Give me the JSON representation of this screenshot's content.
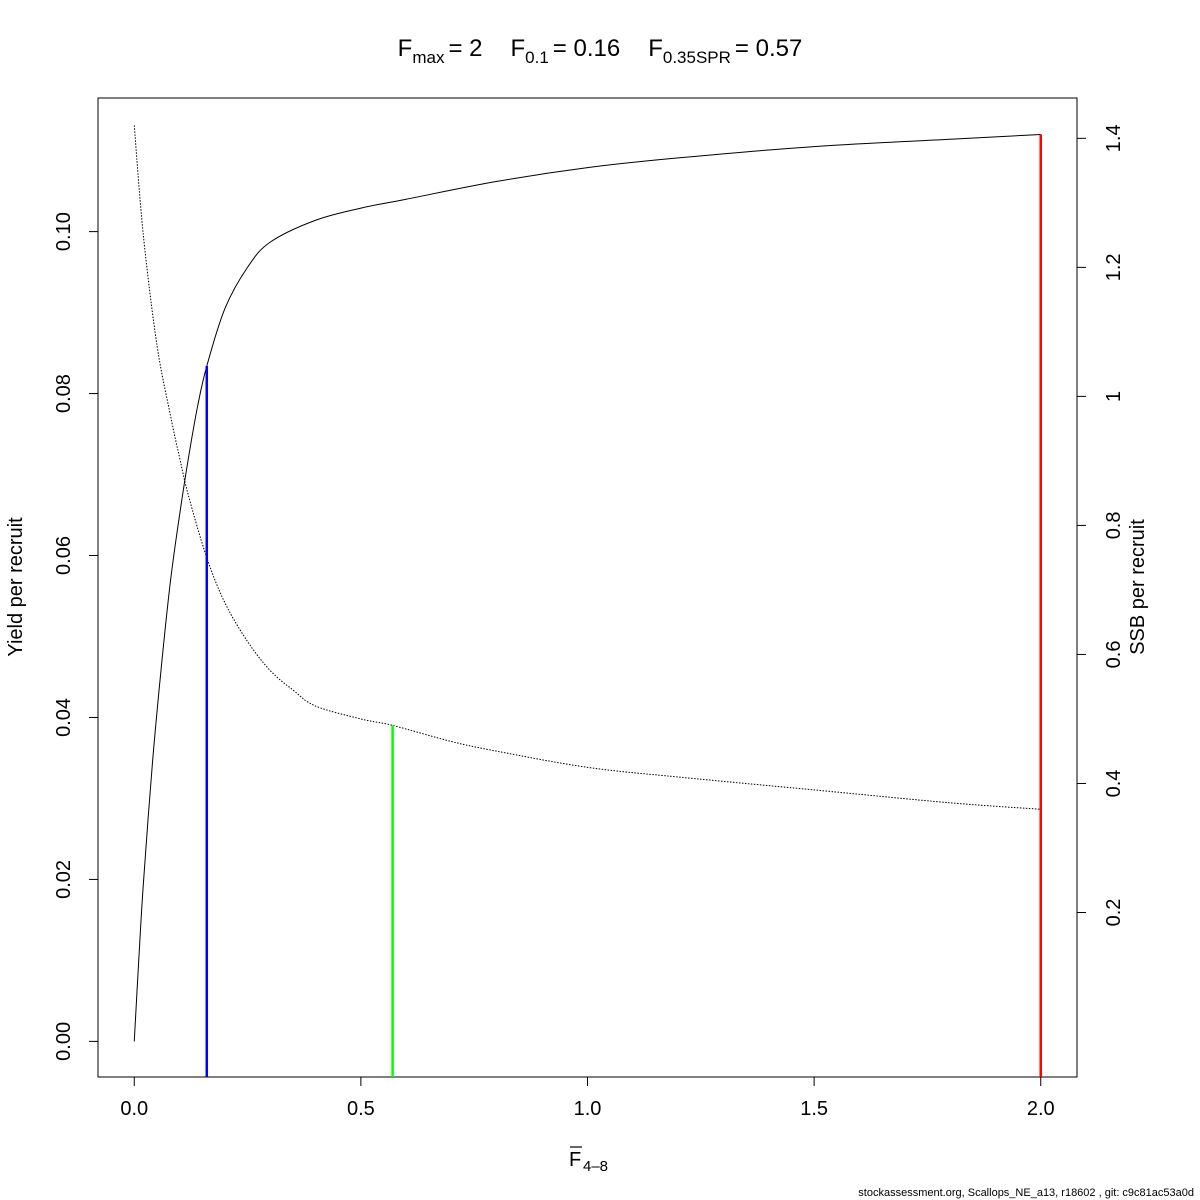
{
  "chart_data": {
    "type": "line",
    "title": {
      "fmax_sym": "F",
      "fmax_sub": "max",
      "fmax_val": "= 2",
      "f01_sym": "F",
      "f01_sub": "0.1",
      "f01_val": "= 0.16",
      "fspr_sym": "F",
      "fspr_sub": "0.35SPR",
      "fspr_val": "= 0.57"
    },
    "xlabel": {
      "symbol": "F",
      "subscript": "4–8",
      "overbar": true
    },
    "ylabel": "Yield per recruit",
    "y2label": "SSB per recruit",
    "xlim": [
      -0.08,
      2.08
    ],
    "ylim": [
      -0.0044,
      0.1165
    ],
    "y2lim": [
      -0.055,
      1.4625
    ],
    "x_ticks": [
      "0.0",
      "0.5",
      "1.0",
      "1.5",
      "2.0"
    ],
    "y_ticks": [
      "0.00",
      "0.02",
      "0.04",
      "0.06",
      "0.08",
      "0.10"
    ],
    "y2_ticks": [
      "0.2",
      "0.4",
      "0.6",
      "0.8",
      "1",
      "1.2",
      "1.4"
    ],
    "grid": false,
    "series": [
      {
        "axis": "left",
        "style": "solid",
        "color": "#000000",
        "x": [
          0,
          0.01,
          0.02,
          0.04,
          0.06,
          0.08,
          0.1,
          0.12,
          0.14,
          0.16,
          0.2,
          0.25,
          0.3,
          0.4,
          0.5,
          0.6,
          0.8,
          1.0,
          1.2,
          1.5,
          1.8,
          2.0
        ],
        "y": [
          0,
          0.0101,
          0.0194,
          0.0343,
          0.0464,
          0.0569,
          0.065,
          0.0722,
          0.0785,
          0.0834,
          0.0905,
          0.0956,
          0.0987,
          0.1014,
          0.1029,
          0.104,
          0.1062,
          0.1079,
          0.1091,
          0.1105,
          0.1114,
          0.112
        ]
      },
      {
        "axis": "right",
        "style": "dotted",
        "color": "#000000",
        "x": [
          0,
          0.02,
          0.05,
          0.08,
          0.1,
          0.12,
          0.16,
          0.2,
          0.25,
          0.3,
          0.35,
          0.4,
          0.5,
          0.57,
          0.7,
          0.8,
          1.0,
          1.2,
          1.5,
          1.8,
          2.0
        ],
        "y": [
          1.42,
          1.25,
          1.08,
          0.97,
          0.905,
          0.845,
          0.75,
          0.68,
          0.62,
          0.575,
          0.545,
          0.52,
          0.5,
          0.49,
          0.465,
          0.45,
          0.425,
          0.41,
          0.39,
          0.37,
          0.36
        ]
      }
    ],
    "reference_lines": [
      {
        "name": "F0.1",
        "x": 0.16,
        "y_left_top": 0.0834,
        "color": "#0000ff"
      },
      {
        "name": "F0.35SPR",
        "x": 0.57,
        "y_right_top": 0.49,
        "color": "#00ff00"
      },
      {
        "name": "Fmax",
        "x": 2.0,
        "y_left_top": 0.112,
        "color": "#ff0000"
      }
    ]
  },
  "footer": "stockassessment.org, Scallops_NE_a13, r18602 , git: c9c81ac53a0d"
}
